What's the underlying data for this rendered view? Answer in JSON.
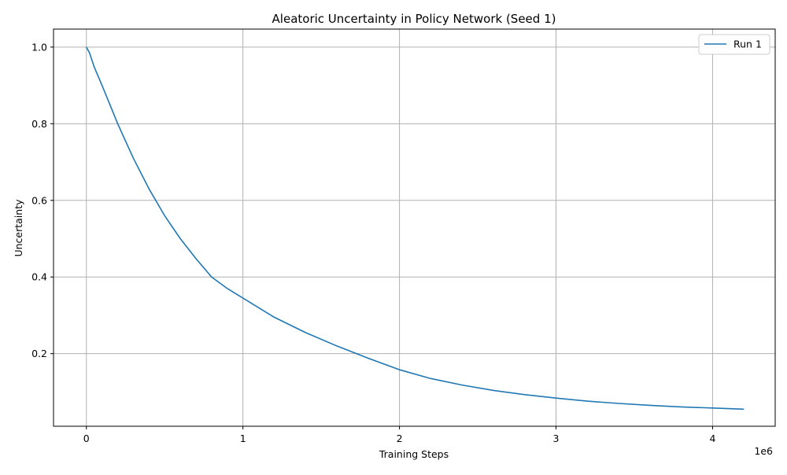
{
  "chart_data": {
    "type": "line",
    "title": "Aleatoric Uncertainty in Policy Network (Seed 1)",
    "xlabel": "Training Steps",
    "ylabel": "Uncertainty",
    "x_offset_label": "1e6",
    "xlim": [
      -210000,
      4400000
    ],
    "ylim": [
      0.0105,
      1.047
    ],
    "x_ticks": [
      0,
      1000000,
      2000000,
      3000000,
      4000000
    ],
    "x_tick_labels": [
      "0",
      "1",
      "2",
      "3",
      "4"
    ],
    "y_ticks": [
      0.2,
      0.4,
      0.6,
      0.8,
      1.0
    ],
    "y_tick_labels": [
      "0.2",
      "0.4",
      "0.6",
      "0.8",
      "1.0"
    ],
    "grid": true,
    "legend_position": "top-right",
    "series": [
      {
        "name": "Run 1",
        "color": "#1f77b4",
        "x": [
          0,
          20000,
          50000,
          100000,
          150000,
          200000,
          250000,
          300000,
          400000,
          500000,
          600000,
          700000,
          800000,
          900000,
          1000000,
          1200000,
          1400000,
          1600000,
          1800000,
          2000000,
          2200000,
          2400000,
          2600000,
          2800000,
          3000000,
          3200000,
          3400000,
          3600000,
          3800000,
          4000000,
          4200000
        ],
        "y": [
          1.0,
          0.985,
          0.948,
          0.9,
          0.85,
          0.8,
          0.755,
          0.71,
          0.63,
          0.56,
          0.5,
          0.448,
          0.4,
          0.37,
          0.345,
          0.295,
          0.255,
          0.22,
          0.188,
          0.158,
          0.135,
          0.118,
          0.104,
          0.093,
          0.084,
          0.076,
          0.07,
          0.065,
          0.061,
          0.058,
          0.055
        ]
      }
    ]
  }
}
